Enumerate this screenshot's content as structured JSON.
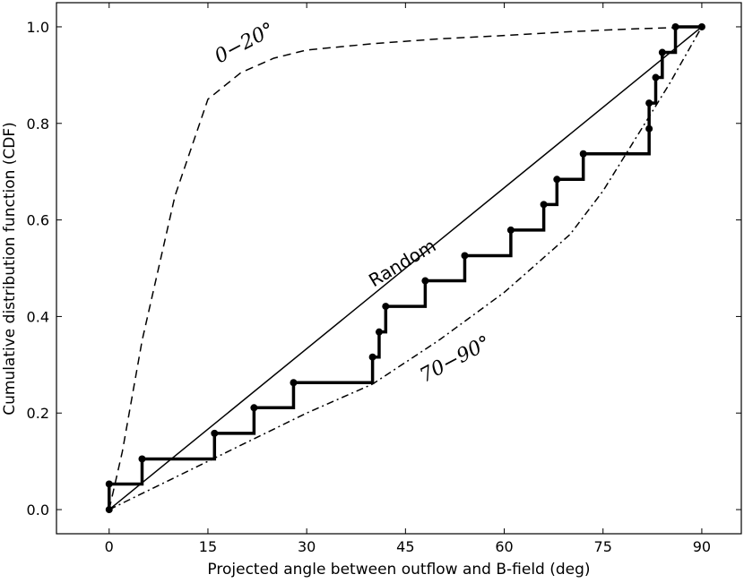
{
  "chart_data": {
    "type": "line",
    "title": "",
    "xlabel": "Projected angle between outflow and B-field (deg)",
    "ylabel": "Cumulative distribution function (CDF)",
    "xlim": [
      -8,
      96
    ],
    "ylim": [
      -0.05,
      1.05
    ],
    "xticks": [
      0,
      15,
      30,
      45,
      60,
      75,
      90
    ],
    "yticks": [
      0.0,
      0.2,
      0.4,
      0.6,
      0.8,
      1.0
    ],
    "xtick_labels": [
      "0",
      "15",
      "30",
      "45",
      "60",
      "75",
      "90"
    ],
    "ytick_labels": [
      "0.0",
      "0.2",
      "0.4",
      "0.6",
      "0.8",
      "1.0"
    ],
    "grid": false,
    "series": [
      {
        "name": "Random",
        "style": "solid",
        "x": [
          0,
          90
        ],
        "y": [
          0,
          1
        ]
      },
      {
        "name": "0–20°",
        "style": "dashed",
        "x": [
          0,
          2,
          5,
          10,
          15,
          20,
          25,
          30,
          40,
          50,
          60,
          70,
          80,
          90
        ],
        "y": [
          0,
          0.12,
          0.35,
          0.65,
          0.85,
          0.905,
          0.935,
          0.952,
          0.965,
          0.975,
          0.982,
          0.99,
          0.996,
          1
        ]
      },
      {
        "name": "70–90°",
        "style": "dashdot",
        "x": [
          0,
          15,
          30,
          40,
          50,
          60,
          70,
          75,
          80,
          85,
          90
        ],
        "y": [
          0,
          0.1,
          0.2,
          0.26,
          0.35,
          0.45,
          0.57,
          0.66,
          0.77,
          0.88,
          1
        ]
      },
      {
        "name": "",
        "style": "step",
        "x": [
          0,
          0,
          5,
          16,
          22,
          28,
          40,
          41,
          42,
          48,
          54,
          61,
          66,
          68,
          72,
          82,
          82,
          83,
          84,
          84,
          86,
          90
        ],
        "y": [
          0,
          0.053,
          0.105,
          0.158,
          0.211,
          0.263,
          0.316,
          0.368,
          0.421,
          0.474,
          0.526,
          0.579,
          0.632,
          0.684,
          0.737,
          0.789,
          0.842,
          0.895,
          0.947,
          0.947,
          1.0,
          1.0
        ]
      }
    ],
    "annotations": [
      {
        "text": "Random",
        "x": 45,
        "y": 0.5,
        "rotation": -31
      },
      {
        "text": "0−20°",
        "x": 21,
        "y": 0.955,
        "rotation": -28
      },
      {
        "text": "70−90°",
        "x": 53,
        "y": 0.3,
        "rotation": -28
      }
    ]
  }
}
